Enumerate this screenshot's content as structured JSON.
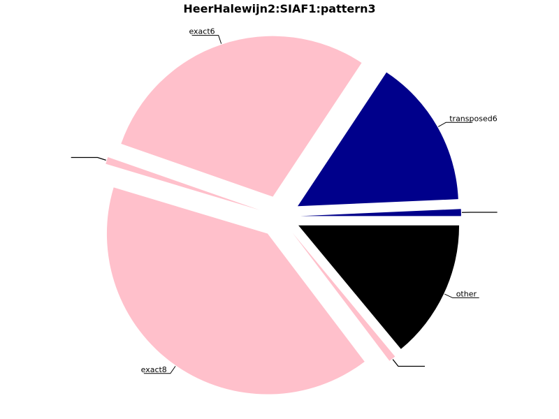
{
  "chart_data": {
    "type": "pie",
    "title": "HeerHalewijn2:SIAF1:pattern3",
    "slices": [
      {
        "label": "other",
        "value": 14,
        "color": "#000000"
      },
      {
        "label": "",
        "value": 0.7,
        "color": "#ffc0cb"
      },
      {
        "label": "exact8",
        "value": 40,
        "color": "#ffc0cb"
      },
      {
        "label": "",
        "value": 0.7,
        "color": "#ffc0cb"
      },
      {
        "label": "exact6",
        "value": 29,
        "color": "#ffc0cb"
      },
      {
        "label": "transposed6",
        "value": 15,
        "color": "#00008b"
      },
      {
        "label": "",
        "value": 0.7,
        "color": "#00008b"
      }
    ],
    "start_angle": 0,
    "direction": "clockwise",
    "exploded": true,
    "legend": "none",
    "colors": {
      "background": "#ffffff",
      "text": "#000000"
    }
  }
}
